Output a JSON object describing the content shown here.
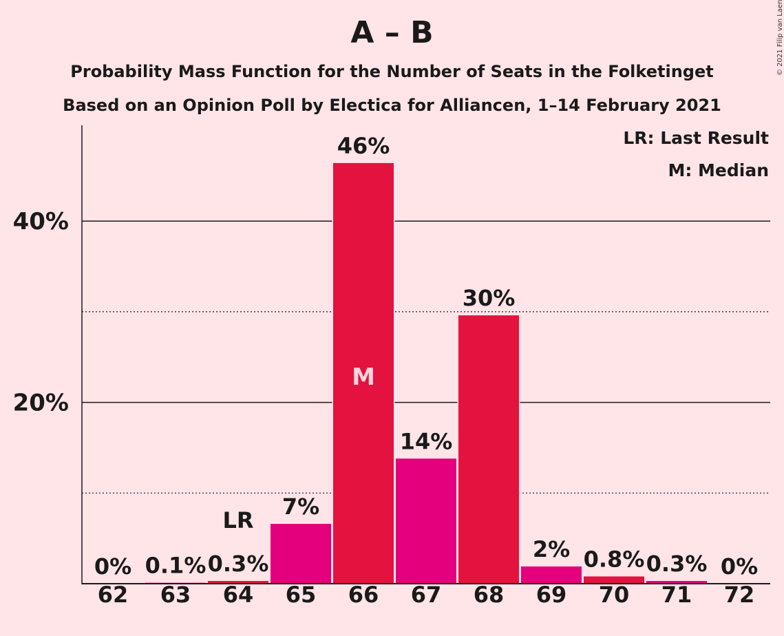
{
  "chart_data": {
    "type": "bar",
    "title": "A – B",
    "subtitle": [
      "Probability Mass Function for the Number of Seats in the Folketinget",
      "Based on an Opinion Poll by Electica for Alliancen, 1–14 February 2021"
    ],
    "copyright": "© 2021 Filip van Laenen",
    "legend": {
      "position": "top-right",
      "entries": [
        "LR: Last Result",
        "M: Median"
      ]
    },
    "categories": [
      "62",
      "63",
      "64",
      "65",
      "66",
      "67",
      "68",
      "69",
      "70",
      "71",
      "72"
    ],
    "values": [
      0,
      0.1,
      0.3,
      6.6,
      46.4,
      13.8,
      29.6,
      1.9,
      0.8,
      0.3,
      0
    ],
    "value_labels": [
      "0%",
      "0.1%",
      "0.3%",
      "7%",
      "46%",
      "14%",
      "30%",
      "2%",
      "0.8%",
      "0.3%",
      "0%"
    ],
    "bar_colors": [
      "#E3123F",
      "#E4007C",
      "#E3123F",
      "#E4007C",
      "#E3123F",
      "#E4007C",
      "#E3123F",
      "#E4007C",
      "#E3123F",
      "#E4007C",
      "#E3123F"
    ],
    "markers": {
      "LR": "64",
      "M": "66"
    },
    "ylim": [
      0,
      50
    ],
    "yticks": [
      20,
      40
    ],
    "ytick_labels": [
      "20%",
      "40%"
    ],
    "minor_gridlines": [
      10,
      30
    ],
    "grid": true
  }
}
